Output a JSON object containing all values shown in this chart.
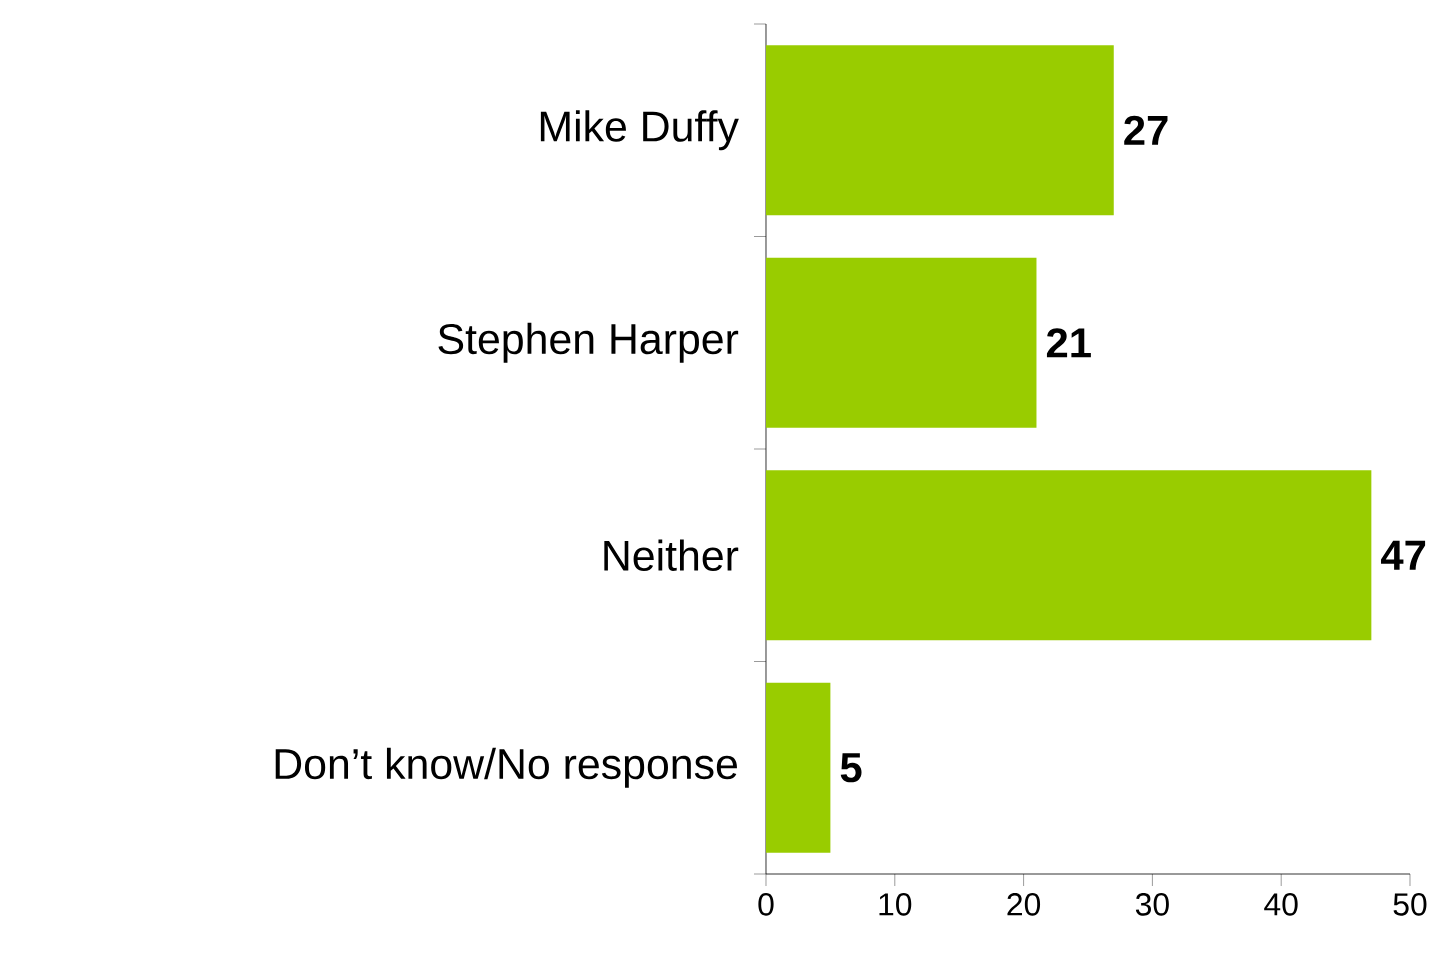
{
  "chart_data": {
    "type": "bar",
    "orientation": "horizontal",
    "categories": [
      "Mike Duffy",
      "Stephen Harper",
      "Neither",
      "Don’t know/No response"
    ],
    "values": [
      27,
      21,
      47,
      5
    ],
    "color": "#99cc00",
    "xlim": [
      0,
      50
    ],
    "xticks": [
      0,
      10,
      20,
      30,
      40,
      50
    ],
    "data_labels": true
  }
}
